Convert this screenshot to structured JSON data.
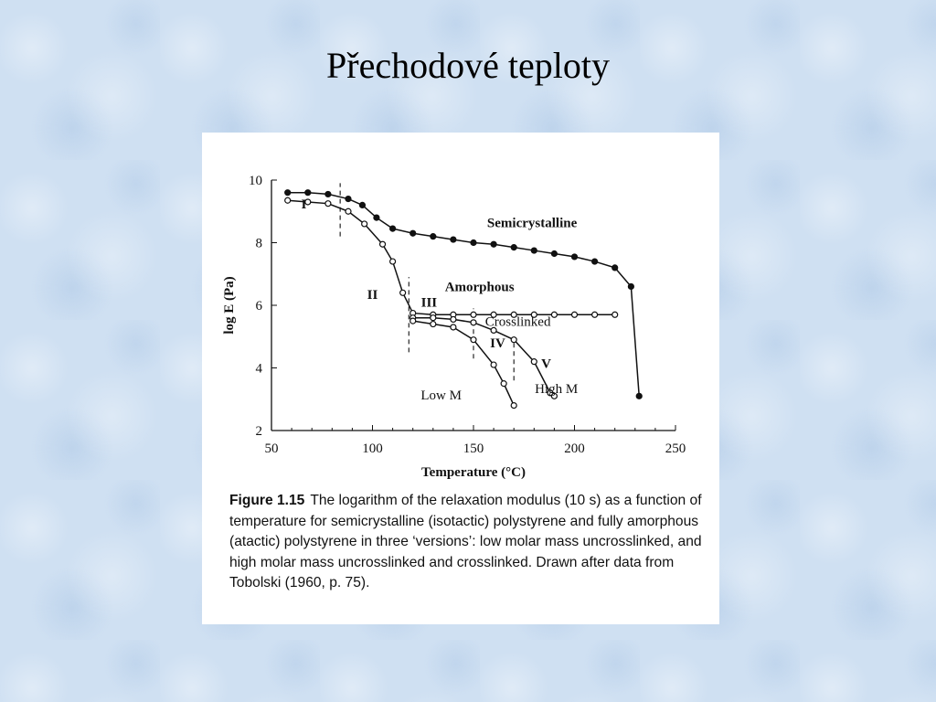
{
  "slide": {
    "title": "Přechodové teploty"
  },
  "figure": {
    "caption_label": "Figure 1.15",
    "caption_text": "The logarithm of the relaxation modulus (10 s) as a function of temperature for semicrystalline (isotactic) polystyrene and fully amorphous (atactic) polystyrene in three ‘versions’: low molar mass uncrosslinked, and high molar mass uncrosslinked and crosslinked. Drawn after data from Tobolski (1960, p. 75)."
  },
  "chart_data": {
    "type": "line",
    "title": "",
    "xlabel": "Temperature (°C)",
    "ylabel": "log E (Pa)",
    "xlim": [
      50,
      250
    ],
    "ylim": [
      2,
      10
    ],
    "xticks": [
      50,
      100,
      150,
      200,
      250
    ],
    "yticks": [
      2,
      4,
      6,
      8,
      10
    ],
    "grid": false,
    "series": [
      {
        "name": "Semicrystalline",
        "color": "#111111",
        "x": [
          58,
          68,
          78,
          88,
          95,
          102,
          110,
          120,
          130,
          140,
          150,
          160,
          170,
          180,
          190,
          200,
          210,
          220,
          228,
          232
        ],
        "y": [
          9.6,
          9.6,
          9.55,
          9.4,
          9.2,
          8.8,
          8.45,
          8.3,
          8.2,
          8.1,
          8.0,
          7.95,
          7.85,
          7.75,
          7.65,
          7.55,
          7.4,
          7.2,
          6.6,
          3.1
        ]
      },
      {
        "name": "Crosslinked",
        "color": "#111111",
        "x": [
          58,
          68,
          78,
          88,
          96,
          105,
          110,
          115,
          120,
          130,
          140,
          150,
          160,
          170,
          180,
          190,
          200,
          210,
          220
        ],
        "y": [
          9.35,
          9.3,
          9.25,
          9.0,
          8.6,
          7.95,
          7.4,
          6.4,
          5.75,
          5.7,
          5.7,
          5.7,
          5.7,
          5.7,
          5.7,
          5.7,
          5.7,
          5.7,
          5.7
        ]
      },
      {
        "name": "High M",
        "color": "#111111",
        "x": [
          120,
          130,
          140,
          150,
          160,
          170,
          180,
          188,
          190
        ],
        "y": [
          5.6,
          5.6,
          5.55,
          5.45,
          5.2,
          4.9,
          4.2,
          3.2,
          3.1
        ]
      },
      {
        "name": "Low M",
        "color": "#111111",
        "x": [
          120,
          130,
          140,
          150,
          160,
          165,
          170
        ],
        "y": [
          5.5,
          5.4,
          5.3,
          4.9,
          4.1,
          3.5,
          2.8
        ]
      }
    ],
    "annotations": [
      {
        "text": "I",
        "x": 66,
        "y": 9.1
      },
      {
        "text": "II",
        "x": 100,
        "y": 6.2
      },
      {
        "text": "III",
        "x": 128,
        "y": 5.95
      },
      {
        "text": "IV",
        "x": 162,
        "y": 4.65
      },
      {
        "text": "V",
        "x": 186,
        "y": 4.0
      },
      {
        "text": "Semicrystalline",
        "x": 179,
        "y": 8.5
      },
      {
        "text": "Amorphous",
        "x": 153,
        "y": 6.45
      },
      {
        "text": "Crosslinked",
        "x": 172,
        "y": 5.35
      },
      {
        "text": "High M",
        "x": 191,
        "y": 3.2
      },
      {
        "text": "Low M",
        "x": 134,
        "y": 3.0
      }
    ],
    "dividers": [
      {
        "x": 84,
        "y_from": 8.2,
        "y_to": 9.9
      },
      {
        "x": 118,
        "y_from": 4.5,
        "y_to": 6.9
      },
      {
        "x": 150,
        "y_from": 4.3,
        "y_to": 5.9
      },
      {
        "x": 170,
        "y_from": 3.6,
        "y_to": 5.0
      }
    ]
  }
}
